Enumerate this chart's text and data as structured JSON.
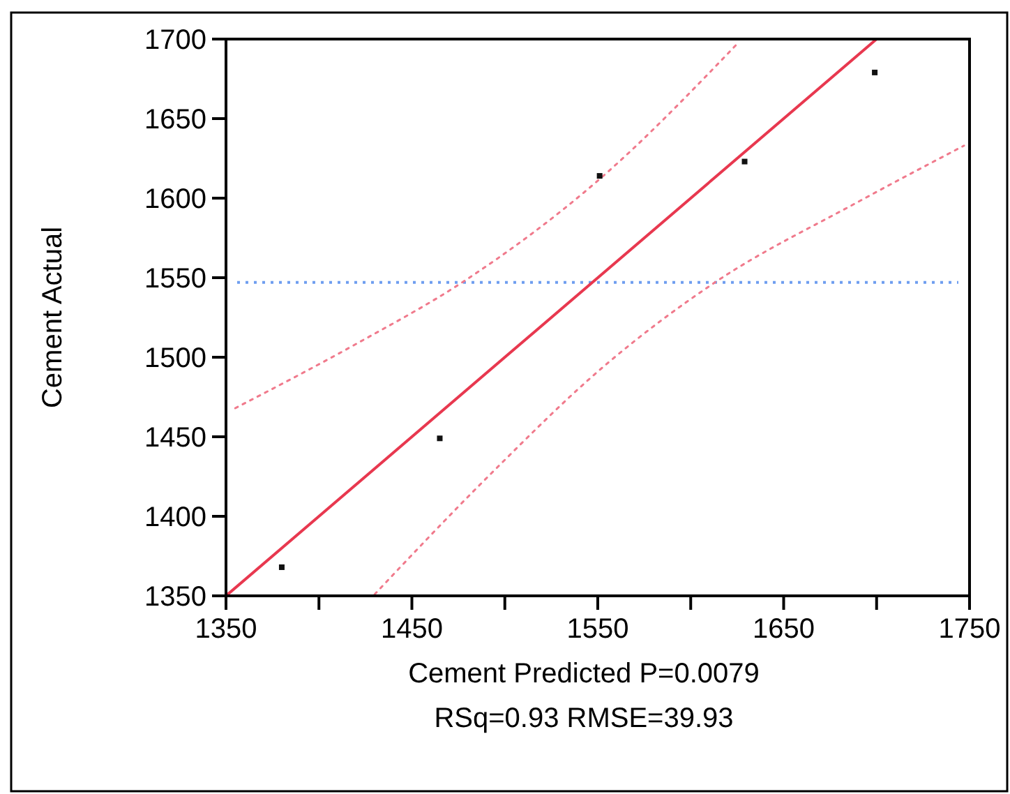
{
  "chart_data": {
    "type": "scatter",
    "xlabel": "Cement Predicted P=0.0079",
    "ylabel": "Cement Actual",
    "annotations": [
      "RSq=0.93 RMSE=39.93"
    ],
    "xlim": [
      1350,
      1750
    ],
    "xticks": [
      1350,
      {
        "value": 1400,
        "label": null
      },
      1450,
      {
        "value": 1500,
        "label": null
      },
      1550,
      {
        "value": 1600,
        "label": null
      },
      1650,
      {
        "value": 1700,
        "label": null
      },
      1750
    ],
    "ylim": [
      1350,
      1700
    ],
    "yticks": [
      1350,
      1400,
      1450,
      1500,
      1550,
      1600,
      1650,
      1700
    ],
    "grid": false,
    "marker": "square",
    "series": [
      {
        "type": "scatter",
        "color": "#111111",
        "x": [
          1380,
          1465,
          1551,
          1629,
          1699
        ],
        "values": [
          1368,
          1449,
          1614,
          1623,
          1679
        ]
      },
      {
        "type": "line",
        "color": "#e8384f",
        "line_style": "solid",
        "marker": "none",
        "x": [
          1350,
          1700
        ],
        "values": [
          1350,
          1700
        ]
      },
      {
        "type": "line",
        "color": "#f07a8c",
        "line_style": "dotted",
        "marker": "none",
        "x": [
          1355,
          1421,
          1477,
          1551,
          1625
        ],
        "values": [
          1468,
          1509,
          1547,
          1612,
          1697
        ]
      },
      {
        "type": "line",
        "color": "#f07a8c",
        "line_style": "dotted",
        "marker": "none",
        "x": [
          1430,
          1491,
          1555,
          1613,
          1689,
          1747
        ],
        "values": [
          1351,
          1425,
          1496,
          1547,
          1597,
          1633
        ]
      }
    ],
    "ref_lines": [
      {
        "axis": "y",
        "value": 1547,
        "color": "#6f9ef0",
        "line_style": "dotted"
      }
    ]
  }
}
